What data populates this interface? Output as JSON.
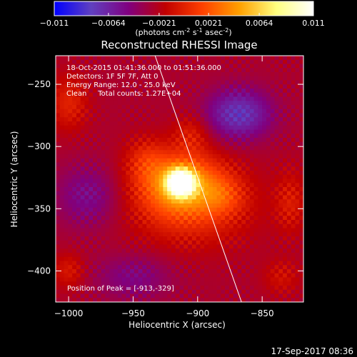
{
  "chart_data": {
    "type": "heatmap",
    "title": "Reconstructed RHESSI Image",
    "colorbar": {
      "ticks": [
        "-0.011",
        "-0.0064",
        "-0.0021",
        "0.0021",
        "0.0064",
        "0.011"
      ],
      "range": [
        -0.011,
        0.011
      ],
      "units_prefix": "(photons cm",
      "units_exp1": "-2",
      "units_mid": " s",
      "units_exp2": "-1",
      "units_mid2": " asec",
      "units_exp3": "-2",
      "units_suffix": ")",
      "colormap": [
        "#0000ff",
        "#6040c0",
        "#800080",
        "#c00000",
        "#ff4000",
        "#ffa000",
        "#ffff80",
        "#ffffff"
      ]
    },
    "xlabel": "Heliocentric X (arcsec)",
    "ylabel": "Heliocentric Y (arcsec)",
    "xlim": [
      -1010,
      -818
    ],
    "ylim": [
      -425,
      -227
    ],
    "xticks": [
      {
        "v": -1000,
        "label": "−1000"
      },
      {
        "v": -950,
        "label": "−950"
      },
      {
        "v": -900,
        "label": "−900"
      },
      {
        "v": -850,
        "label": "−850"
      }
    ],
    "yticks": [
      {
        "v": -250,
        "label": "−250"
      },
      {
        "v": -300,
        "label": "−300"
      },
      {
        "v": -350,
        "label": "−350"
      },
      {
        "v": -400,
        "label": "−400"
      }
    ],
    "annotations": [
      "18-Oct-2015 01:41:36.000 to 01:51:36.000",
      "Detectors: 1F 5F 7F, Att 0",
      "Energy Range: 12.0 - 25.0 keV",
      "Clean     Total counts: 1.27E+04"
    ],
    "peak_label": "Position of Peak = [-913,-329]",
    "peak": {
      "x": -913,
      "y": -329
    },
    "limb_line": [
      [
        -933,
        -227
      ],
      [
        -866,
        -425
      ]
    ]
  },
  "footer": {
    "timestamp": "17-Sep-2017 08:36"
  }
}
